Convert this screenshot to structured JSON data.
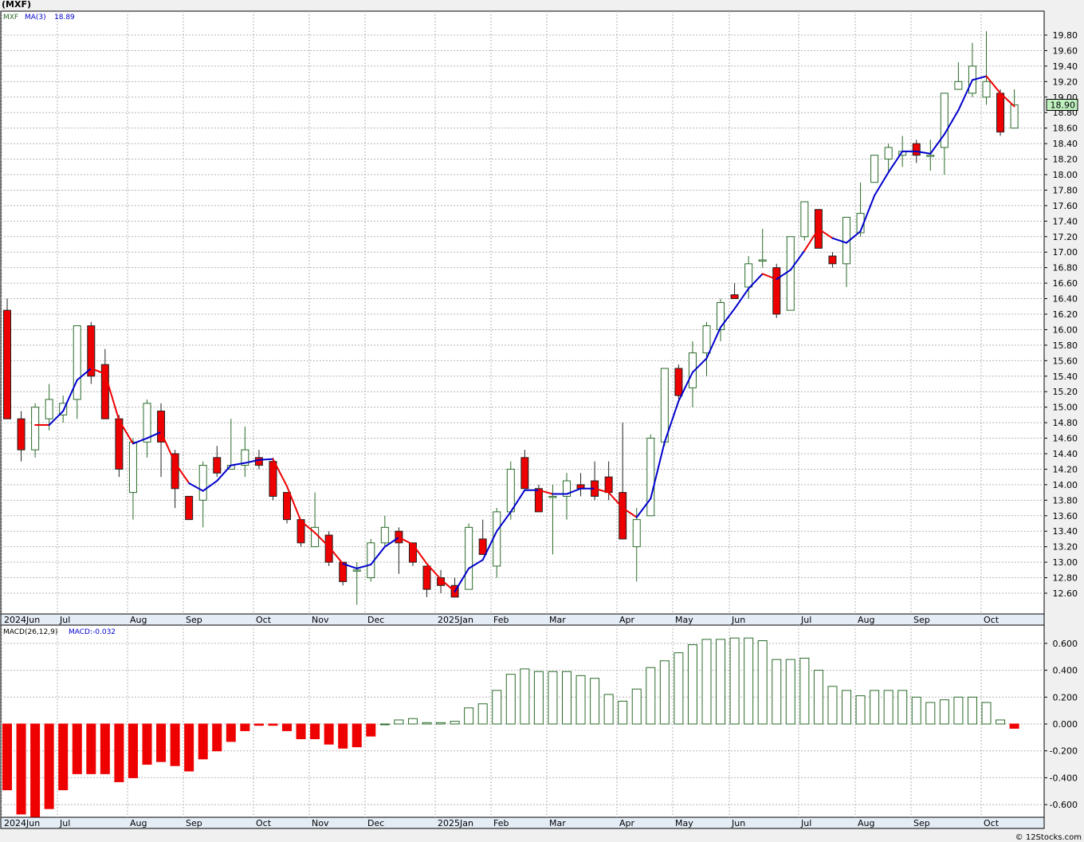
{
  "title": "(MXF)",
  "watermark": "© 12Stocks.com",
  "colors": {
    "up": "#2a6b2a",
    "down": "#ee0000",
    "ma_rising": "#0000cc",
    "ma_falling": "#ee0000",
    "grid": "#b4b4b4",
    "last_price": "#bff0bf"
  },
  "chart_data": [
    {
      "type": "candlestick",
      "title": "",
      "legend": {
        "symbol": "MXF",
        "ma_label": "MA(3)",
        "ma_value": "18.89"
      },
      "last_price_label": "18.90",
      "ylim": [
        12.4,
        19.95
      ],
      "y_ticks": [
        "12.60",
        "12.80",
        "13.00",
        "13.20",
        "13.40",
        "13.60",
        "13.80",
        "14.00",
        "14.20",
        "14.40",
        "14.60",
        "14.80",
        "15.00",
        "15.20",
        "15.40",
        "15.60",
        "15.80",
        "16.00",
        "16.20",
        "16.40",
        "16.60",
        "16.80",
        "17.00",
        "17.20",
        "17.40",
        "17.60",
        "17.80",
        "18.00",
        "18.20",
        "18.40",
        "18.60",
        "18.80",
        "19.00",
        "19.20",
        "19.40",
        "19.60",
        "19.80"
      ],
      "x_labels": [
        {
          "label": "2024Jun",
          "index": 0
        },
        {
          "label": "Jul",
          "index": 4
        },
        {
          "label": "Aug",
          "index": 9
        },
        {
          "label": "Sep",
          "index": 13
        },
        {
          "label": "Oct",
          "index": 18
        },
        {
          "label": "Nov",
          "index": 22
        },
        {
          "label": "Dec",
          "index": 26
        },
        {
          "label": "2025Jan",
          "index": 31
        },
        {
          "label": "Feb",
          "index": 35
        },
        {
          "label": "Mar",
          "index": 39
        },
        {
          "label": "Apr",
          "index": 44
        },
        {
          "label": "May",
          "index": 48
        },
        {
          "label": "Jun",
          "index": 52
        },
        {
          "label": "Jul",
          "index": 57
        },
        {
          "label": "Aug",
          "index": 61
        },
        {
          "label": "Sep",
          "index": 65
        },
        {
          "label": "Oct",
          "index": 70
        }
      ],
      "candles": [
        [
          16.25,
          16.4,
          14.85,
          14.85
        ],
        [
          14.85,
          14.95,
          14.3,
          14.45
        ],
        [
          14.45,
          15.05,
          14.35,
          15.0
        ],
        [
          14.85,
          15.3,
          14.7,
          15.1
        ],
        [
          14.9,
          15.15,
          14.8,
          15.05
        ],
        [
          15.1,
          16.05,
          14.85,
          16.05
        ],
        [
          16.05,
          16.1,
          15.3,
          15.4
        ],
        [
          15.55,
          15.75,
          14.85,
          14.85
        ],
        [
          14.85,
          14.9,
          14.1,
          14.2
        ],
        [
          13.9,
          14.6,
          13.55,
          14.55
        ],
        [
          14.55,
          15.1,
          14.35,
          15.05
        ],
        [
          14.95,
          15.05,
          14.1,
          14.55
        ],
        [
          14.4,
          14.45,
          13.7,
          13.95
        ],
        [
          13.85,
          13.85,
          13.55,
          13.55
        ],
        [
          13.8,
          14.3,
          13.45,
          14.25
        ],
        [
          14.35,
          14.5,
          14.1,
          14.15
        ],
        [
          14.2,
          14.85,
          14.2,
          14.25
        ],
        [
          14.25,
          14.75,
          14.1,
          14.45
        ],
        [
          14.35,
          14.45,
          14.2,
          14.25
        ],
        [
          14.3,
          14.35,
          13.8,
          13.85
        ],
        [
          13.9,
          13.9,
          13.5,
          13.55
        ],
        [
          13.55,
          13.55,
          13.2,
          13.25
        ],
        [
          13.2,
          13.9,
          13.2,
          13.45
        ],
        [
          13.35,
          13.4,
          12.95,
          13.0
        ],
        [
          13.0,
          13.0,
          12.7,
          12.75
        ],
        [
          12.9,
          13.0,
          12.45,
          12.9
        ],
        [
          12.8,
          13.3,
          12.75,
          13.25
        ],
        [
          13.25,
          13.6,
          13.2,
          13.45
        ],
        [
          13.4,
          13.45,
          12.85,
          13.25
        ],
        [
          13.25,
          13.25,
          12.95,
          13.0
        ],
        [
          12.95,
          12.95,
          12.55,
          12.65
        ],
        [
          12.8,
          12.9,
          12.6,
          12.7
        ],
        [
          12.7,
          12.8,
          12.55,
          12.55
        ],
        [
          12.65,
          13.5,
          12.65,
          13.45
        ],
        [
          13.3,
          13.55,
          13.1,
          13.1
        ],
        [
          12.95,
          13.7,
          12.8,
          13.65
        ],
        [
          13.65,
          14.3,
          13.55,
          14.2
        ],
        [
          14.35,
          14.45,
          13.95,
          13.95
        ],
        [
          13.95,
          14.0,
          13.65,
          13.65
        ],
        [
          13.85,
          14.0,
          13.1,
          13.85
        ],
        [
          13.85,
          14.15,
          13.55,
          14.05
        ],
        [
          14.0,
          14.15,
          13.85,
          13.95
        ],
        [
          14.05,
          14.3,
          13.8,
          13.85
        ],
        [
          14.1,
          14.3,
          13.8,
          13.9
        ],
        [
          13.9,
          14.8,
          13.3,
          13.3
        ],
        [
          13.2,
          13.7,
          12.75,
          13.55
        ],
        [
          13.6,
          14.65,
          13.6,
          14.6
        ],
        [
          14.55,
          15.5,
          14.5,
          15.5
        ],
        [
          15.5,
          15.55,
          15.1,
          15.15
        ],
        [
          15.25,
          15.85,
          15.0,
          15.7
        ],
        [
          15.7,
          16.1,
          15.4,
          16.05
        ],
        [
          16.0,
          16.4,
          15.85,
          16.35
        ],
        [
          16.45,
          16.6,
          16.4,
          16.4
        ],
        [
          16.55,
          16.95,
          16.4,
          16.85
        ],
        [
          16.9,
          17.3,
          16.8,
          16.9
        ],
        [
          16.8,
          16.85,
          16.15,
          16.2
        ],
        [
          16.25,
          17.2,
          16.25,
          17.2
        ],
        [
          17.2,
          17.65,
          17.15,
          17.65
        ],
        [
          17.55,
          17.55,
          17.05,
          17.05
        ],
        [
          16.95,
          17.0,
          16.8,
          16.85
        ],
        [
          16.85,
          17.45,
          16.55,
          17.45
        ],
        [
          17.25,
          17.9,
          17.2,
          17.5
        ],
        [
          17.9,
          18.25,
          17.9,
          18.25
        ],
        [
          18.2,
          18.4,
          18.05,
          18.35
        ],
        [
          18.25,
          18.5,
          18.1,
          18.3
        ],
        [
          18.4,
          18.45,
          18.15,
          18.25
        ],
        [
          18.25,
          18.45,
          18.05,
          18.25
        ],
        [
          18.35,
          19.05,
          18.0,
          19.05
        ],
        [
          19.1,
          19.45,
          19.1,
          19.2
        ],
        [
          19.05,
          19.7,
          19.0,
          19.4
        ],
        [
          19.0,
          19.85,
          18.9,
          19.2
        ],
        [
          19.05,
          19.1,
          18.5,
          18.55
        ],
        [
          18.6,
          19.1,
          18.6,
          18.9
        ]
      ],
      "ma3": [
        null,
        null,
        14.77,
        14.77,
        14.95,
        15.35,
        15.5,
        15.43,
        14.83,
        14.53,
        14.6,
        14.68,
        14.28,
        14.02,
        13.92,
        14.05,
        14.25,
        14.28,
        14.32,
        14.33,
        13.98,
        13.53,
        13.38,
        13.2,
        12.98,
        12.92,
        12.97,
        13.2,
        13.32,
        13.23,
        12.98,
        12.78,
        12.62,
        12.92,
        13.03,
        13.4,
        13.65,
        13.93,
        13.93,
        13.88,
        13.88,
        13.95,
        13.95,
        13.9,
        13.7,
        13.58,
        13.82,
        14.55,
        15.08,
        15.45,
        15.63,
        16.03,
        16.27,
        16.53,
        16.72,
        16.65,
        16.77,
        17.02,
        17.3,
        17.18,
        17.12,
        17.27,
        17.73,
        18.03,
        18.3,
        18.3,
        18.27,
        18.52,
        18.83,
        19.22,
        19.27,
        19.05,
        18.88
      ],
      "ma_colors": [
        null,
        null,
        "r",
        "r",
        "b",
        "b",
        "b",
        "r",
        "r",
        "r",
        "b",
        "b",
        "r",
        "r",
        "b",
        "b",
        "b",
        "b",
        "b",
        "b",
        "r",
        "r",
        "r",
        "r",
        "r",
        "b",
        "b",
        "b",
        "b",
        "r",
        "r",
        "r",
        "r",
        "b",
        "b",
        "b",
        "b",
        "b",
        "b",
        "r",
        "b",
        "b",
        "b",
        "r",
        "r",
        "r",
        "b",
        "b",
        "b",
        "b",
        "b",
        "b",
        "b",
        "b",
        "b",
        "r",
        "b",
        "b",
        "r",
        "r",
        "b",
        "b",
        "b",
        "b",
        "b",
        "b",
        "b",
        "b",
        "b",
        "b",
        "b",
        "r",
        "r"
      ]
    },
    {
      "type": "bar",
      "title": "",
      "legend": {
        "name": "MACD(26,12,9)",
        "value_label": "MACD:-0.032"
      },
      "ylim": [
        -0.69,
        0.68
      ],
      "y_ticks": [
        "0.600",
        "0.400",
        "0.200",
        "0.000",
        "-0.200",
        "-0.400",
        "-0.600"
      ],
      "values": [
        -0.49,
        -0.67,
        -0.69,
        -0.63,
        -0.49,
        -0.37,
        -0.37,
        -0.37,
        -0.43,
        -0.4,
        -0.3,
        -0.28,
        -0.31,
        -0.35,
        -0.26,
        -0.2,
        -0.13,
        -0.05,
        -0.01,
        -0.01,
        -0.05,
        -0.11,
        -0.11,
        -0.15,
        -0.18,
        -0.17,
        -0.09,
        0.0,
        0.03,
        0.04,
        0.01,
        0.01,
        0.02,
        0.12,
        0.15,
        0.25,
        0.37,
        0.41,
        0.39,
        0.39,
        0.39,
        0.36,
        0.34,
        0.22,
        0.17,
        0.26,
        0.42,
        0.47,
        0.53,
        0.59,
        0.63,
        0.63,
        0.64,
        0.64,
        0.62,
        0.48,
        0.48,
        0.49,
        0.4,
        0.28,
        0.25,
        0.21,
        0.25,
        0.25,
        0.25,
        0.2,
        0.16,
        0.18,
        0.2,
        0.2,
        0.16,
        0.03,
        -0.032
      ]
    }
  ]
}
